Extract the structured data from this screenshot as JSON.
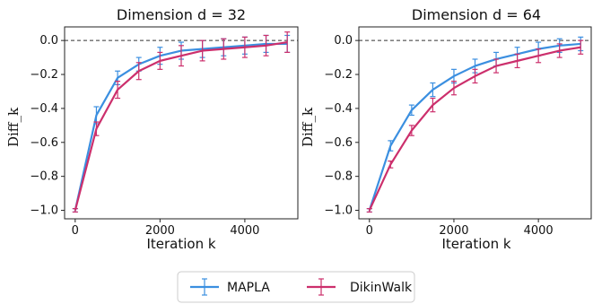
{
  "colors": {
    "MAPLA": "#3b8fe0",
    "DikinWalk": "#cc2f6c",
    "axis": "#222222"
  },
  "legend": {
    "placement": "bottom-center",
    "entries": [
      "MAPLA",
      "DikinWalk"
    ]
  },
  "chart_data": [
    {
      "type": "line",
      "title": "Dimension d = 32",
      "xlabel": "Iteration k",
      "ylabel": "Diff_k",
      "xlim": [
        -250,
        5250
      ],
      "ylim": [
        -1.05,
        0.08
      ],
      "xticks": [
        0,
        2000,
        4000
      ],
      "yticks": [
        0.0,
        -0.2,
        -0.4,
        -0.6,
        -0.8,
        -1.0
      ],
      "xtick_labels": [
        "0",
        "2000",
        "4000"
      ],
      "ytick_labels": [
        "0.0",
        "−0.2",
        "−0.4",
        "−0.6",
        "−0.8",
        "−1.0"
      ],
      "reference_line": 0.0,
      "x": [
        0,
        500,
        1000,
        1500,
        2000,
        2500,
        3000,
        3500,
        4000,
        4500,
        5000
      ],
      "series": [
        {
          "name": "MAPLA",
          "values": [
            -1.0,
            -0.44,
            -0.22,
            -0.14,
            -0.09,
            -0.06,
            -0.05,
            -0.04,
            -0.03,
            -0.02,
            -0.02
          ],
          "errors": [
            0.01,
            0.05,
            0.04,
            0.04,
            0.05,
            0.05,
            0.05,
            0.05,
            0.05,
            0.05,
            0.05
          ]
        },
        {
          "name": "DikinWalk",
          "values": [
            -1.0,
            -0.52,
            -0.29,
            -0.18,
            -0.12,
            -0.09,
            -0.06,
            -0.05,
            -0.04,
            -0.03,
            -0.01
          ],
          "errors": [
            0.01,
            0.04,
            0.05,
            0.05,
            0.05,
            0.06,
            0.06,
            0.06,
            0.06,
            0.06,
            0.06
          ]
        }
      ]
    },
    {
      "type": "line",
      "title": "Dimension d = 64",
      "xlabel": "Iteration k",
      "ylabel": "Diff_k",
      "xlim": [
        -250,
        5250
      ],
      "ylim": [
        -1.05,
        0.08
      ],
      "xticks": [
        0,
        2000,
        4000
      ],
      "yticks": [
        0.0,
        -0.2,
        -0.4,
        -0.6,
        -0.8,
        -1.0
      ],
      "xtick_labels": [
        "0",
        "2000",
        "4000"
      ],
      "ytick_labels": [
        "0.0",
        "−0.2",
        "−0.4",
        "−0.6",
        "−0.8",
        "−1.0"
      ],
      "reference_line": 0.0,
      "x": [
        0,
        500,
        1000,
        1500,
        2000,
        2500,
        3000,
        3500,
        4000,
        4500,
        5000
      ],
      "series": [
        {
          "name": "MAPLA",
          "values": [
            -1.0,
            -0.62,
            -0.41,
            -0.29,
            -0.21,
            -0.15,
            -0.11,
            -0.08,
            -0.05,
            -0.03,
            -0.02
          ],
          "errors": [
            0.01,
            0.03,
            0.03,
            0.04,
            0.04,
            0.04,
            0.04,
            0.04,
            0.04,
            0.04,
            0.04
          ]
        },
        {
          "name": "DikinWalk",
          "values": [
            -1.0,
            -0.73,
            -0.53,
            -0.38,
            -0.28,
            -0.21,
            -0.15,
            -0.12,
            -0.09,
            -0.06,
            -0.04
          ],
          "errors": [
            0.01,
            0.02,
            0.03,
            0.04,
            0.04,
            0.04,
            0.04,
            0.04,
            0.04,
            0.04,
            0.04
          ]
        }
      ]
    }
  ]
}
